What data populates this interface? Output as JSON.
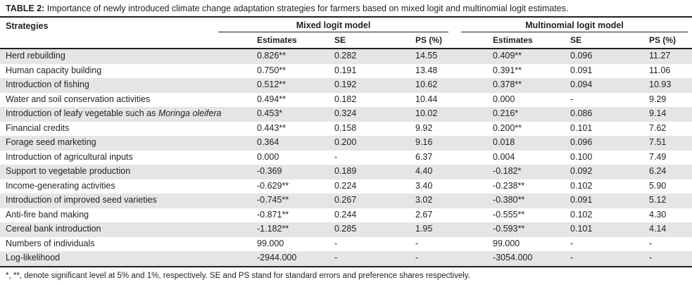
{
  "title": {
    "prefix": "TABLE 2:",
    "text": " Importance of newly introduced climate change adaptation strategies for farmers based on mixed logit and multinomial logit estimates."
  },
  "table": {
    "col_strategies": "Strategies",
    "group_mixed": "Mixed logit model",
    "group_multinomial": "Multinomial logit model",
    "subcols": {
      "estimates": "Estimates",
      "se": "SE",
      "ps": "PS (%)"
    },
    "rows": [
      {
        "strategy": "Herd rebuilding",
        "values": [
          "0.826**",
          "0.282",
          "14.55",
          "0.409**",
          "0.096",
          "11.27"
        ]
      },
      {
        "strategy": "Human capacity building",
        "values": [
          "0.750**",
          "0.191",
          "13.48",
          "0.391**",
          "0.091",
          "11.06"
        ]
      },
      {
        "strategy": "Introduction of fishing",
        "values": [
          "0.512**",
          "0.192",
          "10.62",
          "0.378**",
          "0.094",
          "10.93"
        ]
      },
      {
        "strategy": "Water and soil conservation activities",
        "values": [
          "0.494**",
          "0.182",
          "10.44",
          "0.000",
          "-",
          "9.29"
        ]
      },
      {
        "strategy_parts": [
          {
            "text": "Introduction of leafy vegetable such as "
          },
          {
            "text": "Moringa oleifera",
            "italic": true
          }
        ],
        "values": [
          "0.453*",
          "0.324",
          "10.02",
          "0.216*",
          "0.086",
          "9.14"
        ]
      },
      {
        "strategy": "Financial credits",
        "values": [
          "0.443**",
          "0.158",
          "9.92",
          "0.200**",
          "0.101",
          "7.62"
        ]
      },
      {
        "strategy": "Forage seed marketing",
        "values": [
          "0.364",
          "0.200",
          "9.16",
          "0.018",
          "0.096",
          "7.51"
        ]
      },
      {
        "strategy": "Introduction of agricultural inputs",
        "values": [
          "0.000",
          "-",
          "6.37",
          "0.004",
          "0.100",
          "7.49"
        ]
      },
      {
        "strategy": "Support to vegetable production",
        "values": [
          "-0.369",
          "0.189",
          "4.40",
          "-0.182*",
          "0.092",
          "6.24"
        ]
      },
      {
        "strategy": "Income-generating activities",
        "values": [
          "-0.629**",
          "0.224",
          "3.40",
          "-0.238**",
          "0.102",
          "5.90"
        ]
      },
      {
        "strategy": "Introduction of improved seed varieties",
        "values": [
          "-0.745**",
          "0.267",
          "3.02",
          "-0.380**",
          "0.091",
          "5.12"
        ]
      },
      {
        "strategy": "Anti-fire band making",
        "values": [
          "-0.871**",
          "0.244",
          "2.67",
          "-0.555**",
          "0.102",
          "4.30"
        ]
      },
      {
        "strategy": "Cereal bank introduction",
        "values": [
          "-1.182**",
          "0.285",
          "1.95",
          "-0.593**",
          "0.101",
          "4.14"
        ]
      },
      {
        "strategy": "Numbers of individuals",
        "values": [
          "99.000",
          "-",
          "-",
          "99.000",
          "-",
          "-"
        ]
      },
      {
        "strategy": "Log-likelihood",
        "values": [
          "-2944.000",
          "-",
          "-",
          "-3054.000",
          "-",
          "-"
        ]
      }
    ]
  },
  "footnote": "*, **, denote significant level at 5% and 1%, respectively. SE and PS stand for standard errors and preference shares respectively.",
  "colors": {
    "text": "#231f20",
    "rule": "#231f20",
    "stripe": "#e5e5e5",
    "background": "#ffffff"
  }
}
